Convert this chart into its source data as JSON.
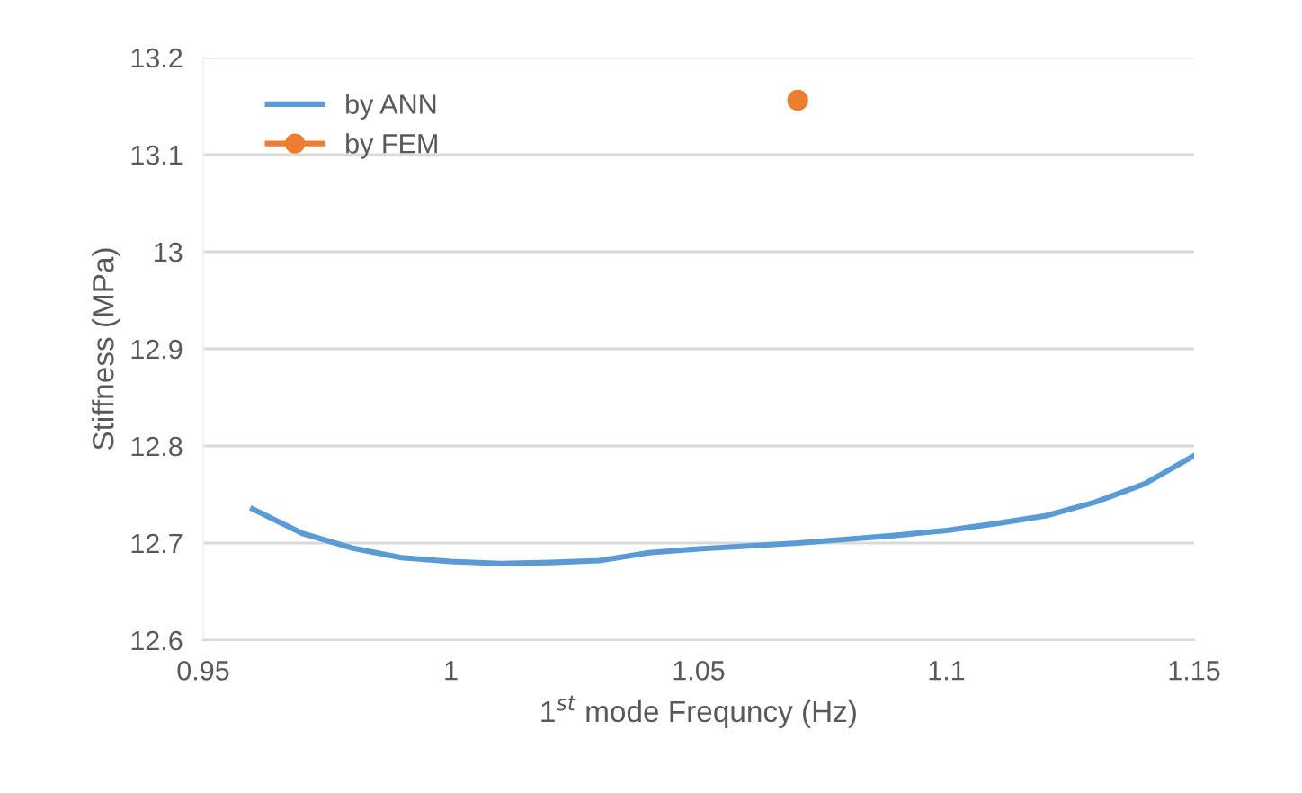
{
  "chart_data": {
    "type": "line",
    "xlabel": "1$^{st}$ mode Frequncy (Hz)",
    "ylabel": "Stiffness (MPa)",
    "xlim": [
      0.95,
      1.15
    ],
    "xticks": [
      0.95,
      1,
      1.05,
      1.1,
      1.15
    ],
    "ylim": [
      12.6,
      13.2
    ],
    "yticks": [
      12.6,
      12.7,
      12.8,
      12.9,
      13,
      13.1,
      13.2
    ],
    "grid": "y",
    "legend": "top left",
    "marker": "none",
    "series": [
      {
        "name": "by ANN",
        "color": "#5b9bd5",
        "x": [
          0.96,
          0.97,
          0.98,
          0.99,
          1.0,
          1.01,
          1.02,
          1.03,
          1.04,
          1.05,
          1.06,
          1.07,
          1.08,
          1.09,
          1.1,
          1.11,
          1.12,
          1.13,
          1.14,
          1.15
        ],
        "values": [
          12.735,
          12.71,
          12.695,
          12.685,
          12.681,
          12.679,
          12.68,
          12.682,
          12.69,
          12.694,
          12.697,
          12.7,
          12.704,
          12.708,
          12.713,
          12.72,
          12.728,
          12.742,
          12.761,
          12.79
        ]
      },
      {
        "name": "by FEM",
        "type": "scatter",
        "color": "#ed7d31",
        "marker": "circle",
        "x": [
          1.07
        ],
        "values": [
          13.156
        ]
      }
    ]
  }
}
